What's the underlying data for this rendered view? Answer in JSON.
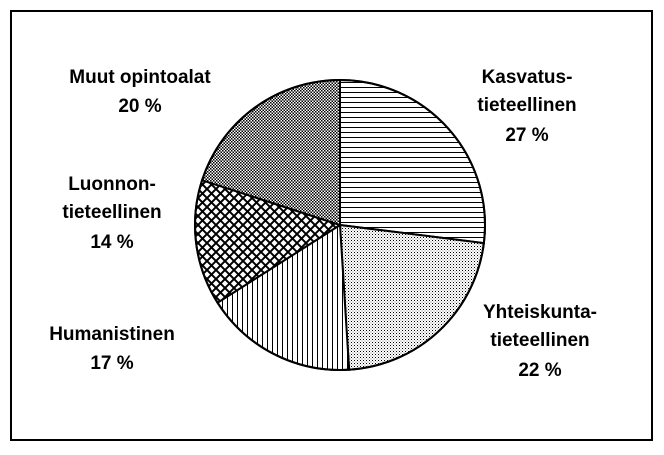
{
  "chart_data": {
    "type": "pie",
    "categories": [
      [
        "Kasvatus-",
        "tieteellinen"
      ],
      [
        "Yhteiskunta-",
        "tieteellinen"
      ],
      [
        "Humanistinen"
      ],
      [
        "Luonnon-",
        "tieteellinen"
      ],
      [
        "Muut opintoalat"
      ]
    ],
    "values": [
      27,
      22,
      17,
      14,
      20
    ],
    "value_labels": [
      "27 %",
      "22 %",
      "17 %",
      "14 %",
      "20 %"
    ],
    "patterns": [
      "horizontal",
      "dots",
      "vertical",
      "crosshatch",
      "dense-dots"
    ],
    "color": "#000000"
  }
}
